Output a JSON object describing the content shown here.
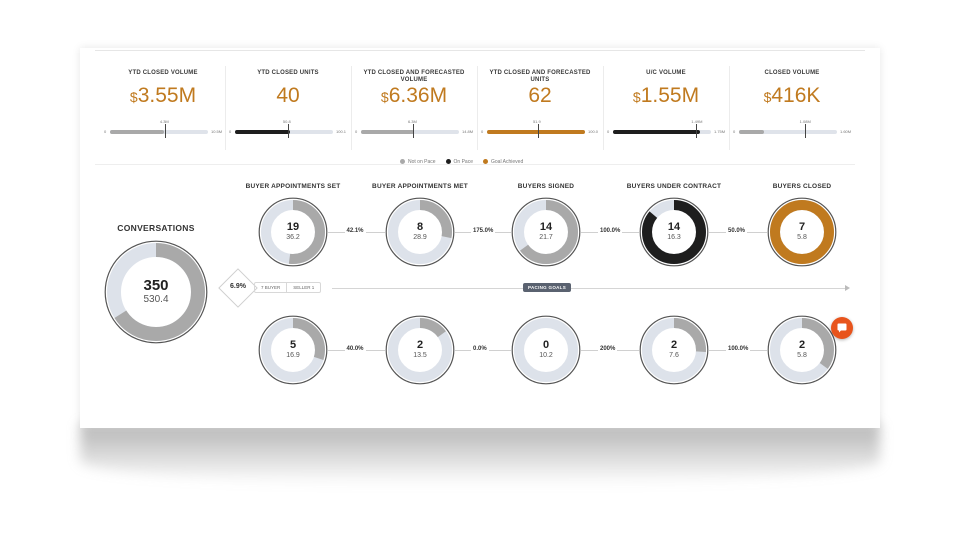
{
  "kpis": [
    {
      "title": "YTD CLOSED VOLUME",
      "currency": "$",
      "value": "3.55M",
      "goal": "4.3M",
      "min": "0",
      "max": "10.5M",
      "fill": 0.55,
      "tick": 0.56,
      "color": "#a9a9a9"
    },
    {
      "title": "YTD CLOSED UNITS",
      "currency": "",
      "value": "40",
      "goal": "50.8",
      "min": "0",
      "max": "100.1",
      "fill": 0.56,
      "tick": 0.54,
      "color": "#1e1e1e"
    },
    {
      "title": "YTD CLOSED AND FORECASTED VOLUME",
      "currency": "$",
      "value": "6.36M",
      "goal": "6.3M",
      "min": "0",
      "max": "14.8M",
      "fill": 0.54,
      "tick": 0.53,
      "color": "#a9a9a9"
    },
    {
      "title": "YTD CLOSED AND FORECASTED UNITS",
      "currency": "",
      "value": "62",
      "goal": "51.9",
      "min": "0",
      "max": "100.0",
      "fill": 1.0,
      "tick": 0.52,
      "color": "#c07a1f"
    },
    {
      "title": "U/C VOLUME",
      "currency": "$",
      "value": "1.55M",
      "goal": "1.49M",
      "min": "0",
      "max": "1.75M",
      "fill": 0.89,
      "tick": 0.85,
      "color": "#1e1e1e"
    },
    {
      "title": "CLOSED VOLUME",
      "currency": "$",
      "value": "416K",
      "goal": "1.08M",
      "min": "0",
      "max": "1.60M",
      "fill": 0.26,
      "tick": 0.67,
      "color": "#a9a9a9"
    }
  ],
  "legend": [
    {
      "label": "Not on Pace",
      "color": "#a9a9a9"
    },
    {
      "label": "On Pace",
      "color": "#1e1e1e"
    },
    {
      "label": "Goal Achieved",
      "color": "#c07a1f"
    }
  ],
  "conversations": {
    "title": "CONVERSATIONS",
    "value": "350",
    "goal": "530.4",
    "progress": 0.66
  },
  "split": {
    "rate": "6.9%",
    "tabs": [
      "7 BUYER",
      "SELLER 1"
    ]
  },
  "pacing_label": "PACING GOALS",
  "buyer_stages": [
    {
      "title": "BUYER APPOINTMENTS SET",
      "value": "19",
      "goal": "36.2",
      "progress": 0.52,
      "color": "#a9a9a9"
    },
    {
      "title": "BUYER APPOINTMENTS MET",
      "value": "8",
      "goal": "28.9",
      "progress": 0.28,
      "color": "#a9a9a9"
    },
    {
      "title": "BUYERS SIGNED",
      "value": "14",
      "goal": "21.7",
      "progress": 0.65,
      "color": "#a9a9a9"
    },
    {
      "title": "BUYERS UNDER CONTRACT",
      "value": "14",
      "goal": "16.3",
      "progress": 0.86,
      "color": "#1e1e1e"
    },
    {
      "title": "BUYERS CLOSED",
      "value": "7",
      "goal": "5.8",
      "progress": 1.0,
      "color": "#c07a1f"
    }
  ],
  "buyer_rates": [
    "42.1%",
    "175.0%",
    "100.0%",
    "50.0%"
  ],
  "seller_stages": [
    {
      "value": "5",
      "goal": "16.9",
      "progress": 0.3,
      "color": "#a9a9a9"
    },
    {
      "value": "2",
      "goal": "13.5",
      "progress": 0.15,
      "color": "#a9a9a9"
    },
    {
      "value": "0",
      "goal": "10.2",
      "progress": 0.0,
      "color": "#a9a9a9"
    },
    {
      "value": "2",
      "goal": "7.6",
      "progress": 0.26,
      "color": "#a9a9a9"
    },
    {
      "value": "2",
      "goal": "5.8",
      "progress": 0.35,
      "color": "#a9a9a9"
    }
  ],
  "seller_rates": [
    "40.0%",
    "0.0%",
    "200%",
    "100.0%"
  ],
  "icons": {
    "chat": "chat-bubble-icon"
  }
}
